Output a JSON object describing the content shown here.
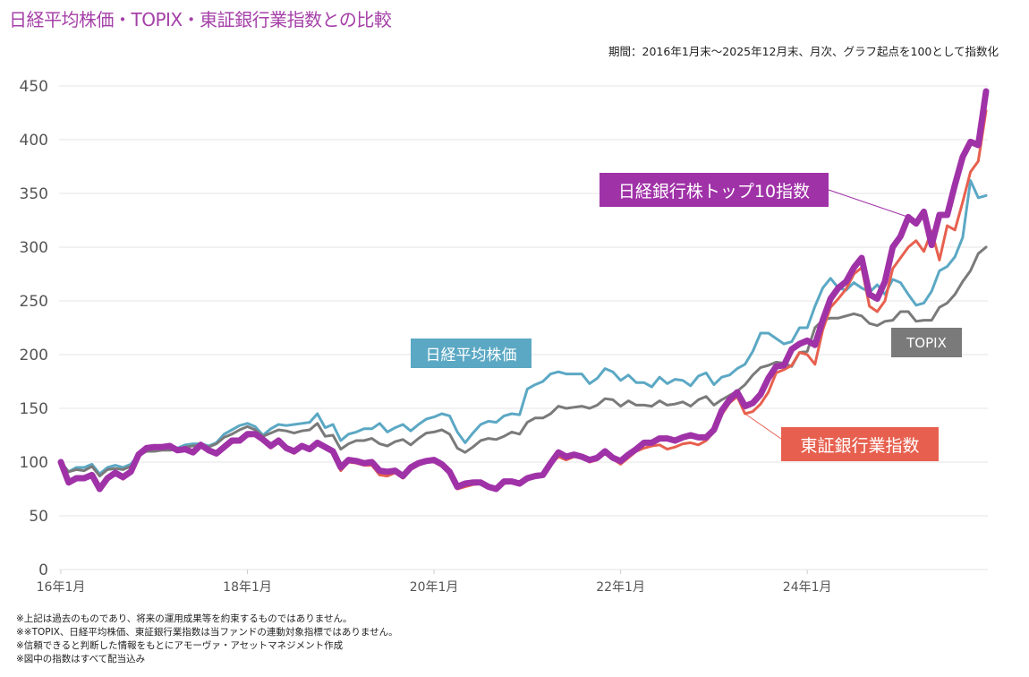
{
  "title": "日経平均株価・TOPIX・東証銀行業指数との比較",
  "subtitle": "期間：2016年1月末～2025年12月末、月次、グラフ起点を100として指数化",
  "notes": [
    "※上記は過去のものであり、将来の運用成果等を約束するものではありません。",
    "※※TOPIX、日経平均株価、東証銀行業指数は当ファンドの連動対象指標ではありません。",
    "※信頼できると判断した情報をもとにアモーヴァ・アセットマネジメント作成",
    "※図中の指数はすべて配当込み"
  ],
  "chart_data": {
    "type": "line",
    "title": "日経平均株価・TOPIX・東証銀行業指数との比較",
    "xlabel": "",
    "ylabel": "",
    "ylim": [
      0,
      450
    ],
    "yticks": [
      0,
      50,
      100,
      150,
      200,
      250,
      300,
      350,
      400,
      450
    ],
    "xticks": [
      "16年1月",
      "18年1月",
      "20年1月",
      "22年1月",
      "24年1月"
    ],
    "xtick_months": [
      0,
      24,
      48,
      72,
      96
    ],
    "x_start": "2016-01",
    "x_end": "2025-12",
    "frequency": "monthly",
    "grid": true,
    "legend": "inline-labels",
    "series": [
      {
        "name": "日経平均株価",
        "color": "#5ba8c4",
        "values": [
          100,
          91,
          95,
          95,
          98,
          89,
          95,
          97,
          95,
          98,
          107,
          112,
          113,
          114,
          113,
          113,
          116,
          117,
          117,
          115,
          118,
          126,
          130,
          134,
          136,
          133,
          125,
          131,
          135,
          134,
          135,
          136,
          137,
          145,
          132,
          135,
          120,
          126,
          128,
          131,
          131,
          136,
          128,
          132,
          135,
          129,
          135,
          140,
          142,
          145,
          143,
          128,
          118,
          127,
          135,
          138,
          137,
          143,
          145,
          144,
          168,
          172,
          175,
          182,
          184,
          182,
          182,
          182,
          173,
          178,
          187,
          184,
          176,
          181,
          174,
          174,
          170,
          179,
          173,
          177,
          176,
          171,
          180,
          183,
          172,
          179,
          181,
          187,
          191,
          203,
          220,
          220,
          215,
          210,
          212,
          225,
          225,
          245,
          262,
          271,
          262,
          260,
          267,
          262,
          258,
          265,
          256,
          270,
          267,
          256,
          246,
          248,
          259,
          278,
          282,
          291,
          309,
          362,
          346,
          348
        ]
      },
      {
        "name": "TOPIX",
        "color": "#7a7a7a",
        "values": [
          100,
          91,
          93,
          92,
          96,
          87,
          93,
          94,
          93,
          96,
          106,
          110,
          110,
          111,
          111,
          112,
          114,
          115,
          116,
          114,
          117,
          123,
          126,
          130,
          133,
          130,
          124,
          127,
          130,
          129,
          127,
          129,
          130,
          136,
          124,
          125,
          112,
          117,
          120,
          120,
          122,
          117,
          115,
          119,
          121,
          116,
          122,
          127,
          128,
          130,
          126,
          113,
          109,
          114,
          120,
          122,
          121,
          124,
          128,
          126,
          137,
          141,
          141,
          145,
          152,
          150,
          151,
          152,
          150,
          153,
          159,
          158,
          152,
          157,
          153,
          153,
          152,
          157,
          153,
          154,
          156,
          152,
          158,
          161,
          153,
          158,
          162,
          166,
          172,
          181,
          188,
          190,
          193,
          192,
          189,
          202,
          203,
          225,
          232,
          234,
          234,
          236,
          238,
          236,
          229,
          227,
          231,
          232,
          240,
          240,
          231,
          232,
          232,
          244,
          248,
          256,
          268,
          278,
          294,
          300
        ]
      },
      {
        "name": "東証銀行業指数",
        "color": "#e7604f",
        "values": [
          100,
          80,
          84,
          84,
          88,
          74,
          84,
          90,
          84,
          91,
          107,
          112,
          113,
          114,
          114,
          110,
          111,
          108,
          115,
          110,
          107,
          113,
          118,
          119,
          124,
          125,
          120,
          113,
          118,
          112,
          108,
          114,
          111,
          118,
          113,
          109,
          92,
          100,
          99,
          97,
          97,
          88,
          87,
          90,
          85,
          93,
          97,
          100,
          100,
          96,
          89,
          75,
          77,
          79,
          80,
          77,
          74,
          80,
          81,
          79,
          83,
          86,
          87,
          98,
          105,
          102,
          105,
          104,
          100,
          102,
          108,
          103,
          98,
          104,
          110,
          113,
          115,
          116,
          112,
          114,
          117,
          118,
          116,
          120,
          128,
          144,
          155,
          161,
          145,
          147,
          154,
          165,
          183,
          186,
          190,
          202,
          200,
          191,
          223,
          244,
          252,
          261,
          275,
          281,
          245,
          240,
          250,
          280,
          290,
          300,
          306,
          296,
          315,
          288,
          320,
          316,
          342,
          370,
          380,
          427
        ]
      },
      {
        "name": "日経銀行株トップ10指数",
        "color": "#a032a8",
        "values": [
          100,
          81,
          85,
          85,
          88,
          75,
          85,
          90,
          86,
          91,
          107,
          113,
          114,
          114,
          115,
          111,
          112,
          109,
          116,
          111,
          108,
          114,
          120,
          120,
          126,
          126,
          121,
          115,
          120,
          113,
          110,
          115,
          112,
          118,
          114,
          110,
          95,
          102,
          101,
          99,
          100,
          92,
          91,
          92,
          87,
          95,
          99,
          101,
          102,
          98,
          91,
          77,
          80,
          81,
          81,
          77,
          75,
          82,
          82,
          80,
          85,
          87,
          88,
          99,
          109,
          105,
          107,
          105,
          102,
          104,
          110,
          104,
          101,
          107,
          112,
          118,
          118,
          122,
          122,
          120,
          123,
          125,
          123,
          123,
          130,
          148,
          158,
          165,
          152,
          155,
          163,
          178,
          189,
          190,
          205,
          210,
          213,
          209,
          232,
          252,
          262,
          268,
          281,
          290,
          256,
          252,
          268,
          300,
          310,
          328,
          322,
          333,
          302,
          330,
          330,
          358,
          384,
          398,
          395,
          445
        ]
      }
    ],
    "labels": {
      "nikkei": "日経平均株価",
      "topix": "TOPIX",
      "tse_bank": "東証銀行業指数",
      "nikkei_bank10": "日経銀行株トップ10指数"
    }
  }
}
